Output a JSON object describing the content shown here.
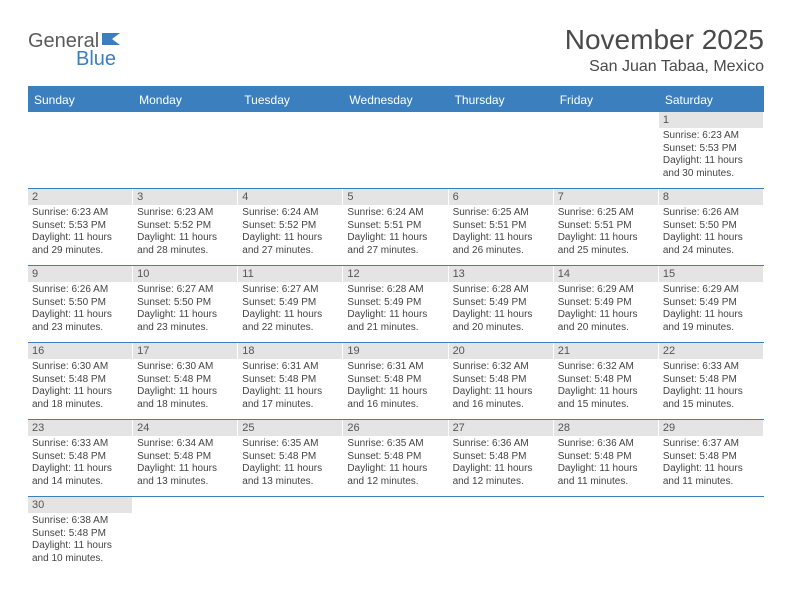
{
  "logo": {
    "part1": "General",
    "part2": "Blue"
  },
  "title": "November 2025",
  "location": "San Juan Tabaa, Mexico",
  "colors": {
    "accent": "#3b7fbf",
    "daynum_bg": "#e4e4e4",
    "text": "#444444",
    "header_text": "#4a4a4a"
  },
  "weekdays": [
    "Sunday",
    "Monday",
    "Tuesday",
    "Wednesday",
    "Thursday",
    "Friday",
    "Saturday"
  ],
  "weeks": [
    [
      null,
      null,
      null,
      null,
      null,
      null,
      {
        "n": "1",
        "sr": "Sunrise: 6:23 AM",
        "ss": "Sunset: 5:53 PM",
        "dl1": "Daylight: 11 hours",
        "dl2": "and 30 minutes."
      }
    ],
    [
      {
        "n": "2",
        "sr": "Sunrise: 6:23 AM",
        "ss": "Sunset: 5:53 PM",
        "dl1": "Daylight: 11 hours",
        "dl2": "and 29 minutes."
      },
      {
        "n": "3",
        "sr": "Sunrise: 6:23 AM",
        "ss": "Sunset: 5:52 PM",
        "dl1": "Daylight: 11 hours",
        "dl2": "and 28 minutes."
      },
      {
        "n": "4",
        "sr": "Sunrise: 6:24 AM",
        "ss": "Sunset: 5:52 PM",
        "dl1": "Daylight: 11 hours",
        "dl2": "and 27 minutes."
      },
      {
        "n": "5",
        "sr": "Sunrise: 6:24 AM",
        "ss": "Sunset: 5:51 PM",
        "dl1": "Daylight: 11 hours",
        "dl2": "and 27 minutes."
      },
      {
        "n": "6",
        "sr": "Sunrise: 6:25 AM",
        "ss": "Sunset: 5:51 PM",
        "dl1": "Daylight: 11 hours",
        "dl2": "and 26 minutes."
      },
      {
        "n": "7",
        "sr": "Sunrise: 6:25 AM",
        "ss": "Sunset: 5:51 PM",
        "dl1": "Daylight: 11 hours",
        "dl2": "and 25 minutes."
      },
      {
        "n": "8",
        "sr": "Sunrise: 6:26 AM",
        "ss": "Sunset: 5:50 PM",
        "dl1": "Daylight: 11 hours",
        "dl2": "and 24 minutes."
      }
    ],
    [
      {
        "n": "9",
        "sr": "Sunrise: 6:26 AM",
        "ss": "Sunset: 5:50 PM",
        "dl1": "Daylight: 11 hours",
        "dl2": "and 23 minutes."
      },
      {
        "n": "10",
        "sr": "Sunrise: 6:27 AM",
        "ss": "Sunset: 5:50 PM",
        "dl1": "Daylight: 11 hours",
        "dl2": "and 23 minutes."
      },
      {
        "n": "11",
        "sr": "Sunrise: 6:27 AM",
        "ss": "Sunset: 5:49 PM",
        "dl1": "Daylight: 11 hours",
        "dl2": "and 22 minutes."
      },
      {
        "n": "12",
        "sr": "Sunrise: 6:28 AM",
        "ss": "Sunset: 5:49 PM",
        "dl1": "Daylight: 11 hours",
        "dl2": "and 21 minutes."
      },
      {
        "n": "13",
        "sr": "Sunrise: 6:28 AM",
        "ss": "Sunset: 5:49 PM",
        "dl1": "Daylight: 11 hours",
        "dl2": "and 20 minutes."
      },
      {
        "n": "14",
        "sr": "Sunrise: 6:29 AM",
        "ss": "Sunset: 5:49 PM",
        "dl1": "Daylight: 11 hours",
        "dl2": "and 20 minutes."
      },
      {
        "n": "15",
        "sr": "Sunrise: 6:29 AM",
        "ss": "Sunset: 5:49 PM",
        "dl1": "Daylight: 11 hours",
        "dl2": "and 19 minutes."
      }
    ],
    [
      {
        "n": "16",
        "sr": "Sunrise: 6:30 AM",
        "ss": "Sunset: 5:48 PM",
        "dl1": "Daylight: 11 hours",
        "dl2": "and 18 minutes."
      },
      {
        "n": "17",
        "sr": "Sunrise: 6:30 AM",
        "ss": "Sunset: 5:48 PM",
        "dl1": "Daylight: 11 hours",
        "dl2": "and 18 minutes."
      },
      {
        "n": "18",
        "sr": "Sunrise: 6:31 AM",
        "ss": "Sunset: 5:48 PM",
        "dl1": "Daylight: 11 hours",
        "dl2": "and 17 minutes."
      },
      {
        "n": "19",
        "sr": "Sunrise: 6:31 AM",
        "ss": "Sunset: 5:48 PM",
        "dl1": "Daylight: 11 hours",
        "dl2": "and 16 minutes."
      },
      {
        "n": "20",
        "sr": "Sunrise: 6:32 AM",
        "ss": "Sunset: 5:48 PM",
        "dl1": "Daylight: 11 hours",
        "dl2": "and 16 minutes."
      },
      {
        "n": "21",
        "sr": "Sunrise: 6:32 AM",
        "ss": "Sunset: 5:48 PM",
        "dl1": "Daylight: 11 hours",
        "dl2": "and 15 minutes."
      },
      {
        "n": "22",
        "sr": "Sunrise: 6:33 AM",
        "ss": "Sunset: 5:48 PM",
        "dl1": "Daylight: 11 hours",
        "dl2": "and 15 minutes."
      }
    ],
    [
      {
        "n": "23",
        "sr": "Sunrise: 6:33 AM",
        "ss": "Sunset: 5:48 PM",
        "dl1": "Daylight: 11 hours",
        "dl2": "and 14 minutes."
      },
      {
        "n": "24",
        "sr": "Sunrise: 6:34 AM",
        "ss": "Sunset: 5:48 PM",
        "dl1": "Daylight: 11 hours",
        "dl2": "and 13 minutes."
      },
      {
        "n": "25",
        "sr": "Sunrise: 6:35 AM",
        "ss": "Sunset: 5:48 PM",
        "dl1": "Daylight: 11 hours",
        "dl2": "and 13 minutes."
      },
      {
        "n": "26",
        "sr": "Sunrise: 6:35 AM",
        "ss": "Sunset: 5:48 PM",
        "dl1": "Daylight: 11 hours",
        "dl2": "and 12 minutes."
      },
      {
        "n": "27",
        "sr": "Sunrise: 6:36 AM",
        "ss": "Sunset: 5:48 PM",
        "dl1": "Daylight: 11 hours",
        "dl2": "and 12 minutes."
      },
      {
        "n": "28",
        "sr": "Sunrise: 6:36 AM",
        "ss": "Sunset: 5:48 PM",
        "dl1": "Daylight: 11 hours",
        "dl2": "and 11 minutes."
      },
      {
        "n": "29",
        "sr": "Sunrise: 6:37 AM",
        "ss": "Sunset: 5:48 PM",
        "dl1": "Daylight: 11 hours",
        "dl2": "and 11 minutes."
      }
    ],
    [
      {
        "n": "30",
        "sr": "Sunrise: 6:38 AM",
        "ss": "Sunset: 5:48 PM",
        "dl1": "Daylight: 11 hours",
        "dl2": "and 10 minutes."
      },
      null,
      null,
      null,
      null,
      null,
      null
    ]
  ]
}
